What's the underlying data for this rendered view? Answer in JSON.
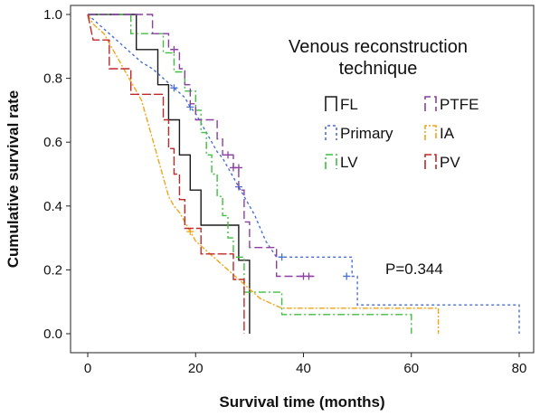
{
  "chart_data": {
    "type": "line",
    "subtype": "kaplan-meier step",
    "xlabel": "Survival time (months)",
    "ylabel": "Cumulative survival rate",
    "xlim": [
      0,
      80
    ],
    "ylim": [
      0,
      1.0
    ],
    "xticks": [
      "0",
      "20",
      "40",
      "60",
      "80"
    ],
    "yticks": [
      "0.0",
      "0.2",
      "0.4",
      "0.6",
      "0.8",
      "1.0"
    ],
    "legend": {
      "title": "Venous reconstruction technique",
      "placement": "top-right"
    },
    "annotation": "P=0.344",
    "series": [
      {
        "name": "FL",
        "color": "#1a1a1a",
        "dash": "",
        "points": [
          [
            0,
            1.0
          ],
          [
            9,
            1.0
          ],
          [
            9,
            0.89
          ],
          [
            13,
            0.89
          ],
          [
            13,
            0.78
          ],
          [
            15,
            0.78
          ],
          [
            15,
            0.67
          ],
          [
            17,
            0.67
          ],
          [
            17,
            0.56
          ],
          [
            19,
            0.56
          ],
          [
            19,
            0.45
          ],
          [
            21,
            0.45
          ],
          [
            21,
            0.34
          ],
          [
            25,
            0.34
          ],
          [
            25,
            0.34
          ],
          [
            28,
            0.34
          ],
          [
            28,
            0.23
          ],
          [
            30,
            0.23
          ],
          [
            30,
            0.0
          ]
        ],
        "censors": []
      },
      {
        "name": "Primary",
        "color": "#4a6fd1",
        "dash": "3,3",
        "points": [
          [
            0,
            1.0
          ],
          [
            2,
            0.97
          ],
          [
            4,
            0.94
          ],
          [
            6,
            0.91
          ],
          [
            8,
            0.88
          ],
          [
            10,
            0.85
          ],
          [
            12,
            0.83
          ],
          [
            14,
            0.8
          ],
          [
            16,
            0.77
          ],
          [
            18,
            0.74
          ],
          [
            19,
            0.71
          ],
          [
            20,
            0.69
          ],
          [
            21,
            0.66
          ],
          [
            22,
            0.63
          ],
          [
            23,
            0.6
          ],
          [
            24,
            0.57
          ],
          [
            25,
            0.55
          ],
          [
            26,
            0.52
          ],
          [
            27,
            0.49
          ],
          [
            28,
            0.46
          ],
          [
            29,
            0.43
          ],
          [
            30,
            0.4
          ],
          [
            31,
            0.37
          ],
          [
            32,
            0.33
          ],
          [
            33,
            0.29
          ],
          [
            35,
            0.24
          ],
          [
            49,
            0.24
          ],
          [
            49,
            0.18
          ],
          [
            50,
            0.18
          ],
          [
            50,
            0.09
          ],
          [
            80,
            0.09
          ],
          [
            80,
            0.0
          ]
        ],
        "censors": [
          [
            16,
            0.77
          ],
          [
            19,
            0.71
          ],
          [
            28,
            0.46
          ],
          [
            36,
            0.24
          ],
          [
            48,
            0.18
          ]
        ]
      },
      {
        "name": "LV",
        "color": "#3fbf3f",
        "dash": "8,3,2,3",
        "points": [
          [
            0,
            1.0
          ],
          [
            8,
            1.0
          ],
          [
            8,
            0.94
          ],
          [
            14,
            0.94
          ],
          [
            14,
            0.88
          ],
          [
            16,
            0.88
          ],
          [
            16,
            0.82
          ],
          [
            18,
            0.82
          ],
          [
            18,
            0.76
          ],
          [
            20,
            0.76
          ],
          [
            20,
            0.7
          ],
          [
            21,
            0.7
          ],
          [
            21,
            0.63
          ],
          [
            22,
            0.63
          ],
          [
            22,
            0.56
          ],
          [
            23,
            0.56
          ],
          [
            23,
            0.5
          ],
          [
            24,
            0.5
          ],
          [
            24,
            0.43
          ],
          [
            25,
            0.43
          ],
          [
            25,
            0.37
          ],
          [
            26,
            0.37
          ],
          [
            26,
            0.3
          ],
          [
            27,
            0.3
          ],
          [
            27,
            0.24
          ],
          [
            29,
            0.24
          ],
          [
            29,
            0.13
          ],
          [
            36,
            0.13
          ],
          [
            36,
            0.06
          ],
          [
            60,
            0.06
          ],
          [
            60,
            0.0
          ]
        ],
        "censors": []
      },
      {
        "name": "PTFE",
        "color": "#8b3fa3",
        "dash": "9,4",
        "points": [
          [
            0,
            1.0
          ],
          [
            12,
            1.0
          ],
          [
            12,
            0.94
          ],
          [
            15,
            0.94
          ],
          [
            15,
            0.89
          ],
          [
            17,
            0.89
          ],
          [
            17,
            0.83
          ],
          [
            18,
            0.83
          ],
          [
            18,
            0.78
          ],
          [
            19,
            0.78
          ],
          [
            19,
            0.72
          ],
          [
            20,
            0.72
          ],
          [
            20,
            0.67
          ],
          [
            24,
            0.67
          ],
          [
            24,
            0.61
          ],
          [
            25,
            0.61
          ],
          [
            25,
            0.56
          ],
          [
            27,
            0.56
          ],
          [
            27,
            0.52
          ],
          [
            28,
            0.52
          ],
          [
            28,
            0.45
          ],
          [
            29,
            0.45
          ],
          [
            29,
            0.35
          ],
          [
            30,
            0.35
          ],
          [
            30,
            0.27
          ],
          [
            35,
            0.27
          ],
          [
            35,
            0.18
          ],
          [
            42,
            0.18
          ]
        ],
        "censors": [
          [
            16,
            0.89
          ],
          [
            26,
            0.56
          ],
          [
            27,
            0.52
          ],
          [
            28,
            0.52
          ],
          [
            40,
            0.18
          ],
          [
            41,
            0.18
          ]
        ]
      },
      {
        "name": "IA",
        "color": "#f2a51a",
        "dash": "6,2,2,2",
        "points": [
          [
            0,
            1.0
          ],
          [
            1,
            0.97
          ],
          [
            3,
            0.94
          ],
          [
            4,
            0.91
          ],
          [
            5,
            0.88
          ],
          [
            6,
            0.85
          ],
          [
            7,
            0.82
          ],
          [
            8,
            0.79
          ],
          [
            9,
            0.76
          ],
          [
            10,
            0.73
          ],
          [
            11,
            0.67
          ],
          [
            12,
            0.61
          ],
          [
            13,
            0.55
          ],
          [
            14,
            0.49
          ],
          [
            15,
            0.43
          ],
          [
            16,
            0.4
          ],
          [
            17,
            0.38
          ],
          [
            18,
            0.35
          ],
          [
            19,
            0.32
          ],
          [
            20,
            0.29
          ],
          [
            22,
            0.26
          ],
          [
            24,
            0.23
          ],
          [
            26,
            0.2
          ],
          [
            28,
            0.17
          ],
          [
            30,
            0.14
          ],
          [
            32,
            0.11
          ],
          [
            36,
            0.08
          ],
          [
            65,
            0.08
          ],
          [
            65,
            0.0
          ]
        ],
        "censors": [
          [
            19,
            0.32
          ]
        ]
      },
      {
        "name": "PV",
        "color": "#c0282a",
        "dash": "10,3",
        "points": [
          [
            0,
            1.0
          ],
          [
            1,
            0.92
          ],
          [
            4,
            0.92
          ],
          [
            4,
            0.83
          ],
          [
            8,
            0.83
          ],
          [
            8,
            0.75
          ],
          [
            14,
            0.75
          ],
          [
            14,
            0.67
          ],
          [
            15,
            0.67
          ],
          [
            15,
            0.58
          ],
          [
            16,
            0.58
          ],
          [
            16,
            0.5
          ],
          [
            17,
            0.5
          ],
          [
            17,
            0.42
          ],
          [
            18,
            0.42
          ],
          [
            18,
            0.33
          ],
          [
            21,
            0.33
          ],
          [
            21,
            0.25
          ],
          [
            27,
            0.25
          ],
          [
            27,
            0.17
          ],
          [
            29,
            0.17
          ],
          [
            29,
            0.0
          ]
        ],
        "censors": []
      }
    ]
  }
}
